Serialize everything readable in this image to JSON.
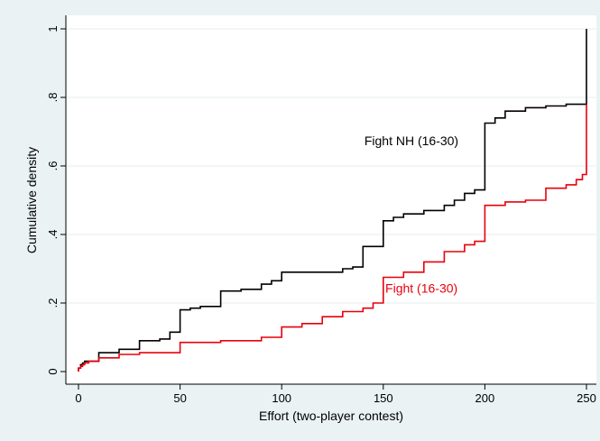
{
  "chart_data": {
    "type": "line",
    "xlabel": "Effort (two-player contest)",
    "ylabel": "Cumulative density",
    "xlim": [
      -2,
      252
    ],
    "ylim": [
      -0.02,
      1.01
    ],
    "x_ticks": [
      0,
      50,
      100,
      150,
      200,
      250
    ],
    "x_tick_labels": [
      "0",
      "50",
      "100",
      "150",
      "200",
      "250"
    ],
    "y_ticks": [
      0,
      0.2,
      0.4,
      0.6,
      0.8,
      1
    ],
    "y_tick_labels": [
      "0",
      ".2",
      ".4",
      ".6",
      ".8",
      "1"
    ],
    "grid": "horizontal",
    "legend": "none",
    "series": [
      {
        "name": "Fight NH (16-30)",
        "color": "#000000",
        "step": true,
        "x": [
          0,
          1,
          2,
          3,
          5,
          10,
          20,
          30,
          40,
          45,
          50,
          55,
          60,
          70,
          80,
          90,
          95,
          100,
          110,
          120,
          130,
          135,
          140,
          150,
          155,
          160,
          170,
          180,
          185,
          190,
          195,
          200,
          205,
          210,
          220,
          230,
          240,
          245,
          250
        ],
        "y": [
          0.01,
          0.02,
          0.025,
          0.03,
          0.03,
          0.055,
          0.065,
          0.09,
          0.095,
          0.115,
          0.18,
          0.185,
          0.19,
          0.235,
          0.24,
          0.255,
          0.265,
          0.29,
          0.29,
          0.29,
          0.3,
          0.305,
          0.365,
          0.44,
          0.45,
          0.46,
          0.47,
          0.485,
          0.5,
          0.52,
          0.53,
          0.725,
          0.74,
          0.76,
          0.77,
          0.775,
          0.78,
          0.78,
          1.0
        ]
      },
      {
        "name": "Fight (16-30)",
        "color": "#e8000b",
        "step": true,
        "x": [
          0,
          1,
          2,
          3,
          5,
          10,
          20,
          30,
          50,
          70,
          90,
          100,
          110,
          120,
          130,
          140,
          145,
          150,
          160,
          170,
          180,
          190,
          195,
          200,
          210,
          220,
          230,
          240,
          245,
          248,
          250
        ],
        "y": [
          0.01,
          0.015,
          0.02,
          0.025,
          0.03,
          0.04,
          0.05,
          0.055,
          0.085,
          0.09,
          0.1,
          0.13,
          0.14,
          0.16,
          0.175,
          0.185,
          0.2,
          0.275,
          0.29,
          0.32,
          0.35,
          0.37,
          0.38,
          0.485,
          0.495,
          0.5,
          0.535,
          0.545,
          0.56,
          0.575,
          0.78
        ]
      }
    ],
    "annotations": [
      {
        "text": "Fight NH (16-30)",
        "series": 0,
        "x": 187,
        "y": 0.66
      },
      {
        "text": "Fight (16-30)",
        "series": 1,
        "x": 151,
        "y": 0.23
      }
    ]
  }
}
